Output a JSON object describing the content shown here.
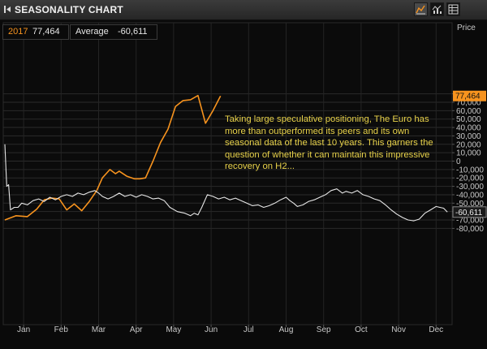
{
  "window": {
    "title": "SEASONALITY CHART"
  },
  "toolbar": {
    "icons": [
      "line-chart-icon",
      "bar-chart-icon",
      "table-icon"
    ]
  },
  "legend": {
    "series_2017": {
      "label": "2017",
      "value": "77,464",
      "color": "#f7931e"
    },
    "average": {
      "label": "Average",
      "value": "-60,611",
      "color": "#e6e6e6"
    }
  },
  "annotation": "Taking large speculative positioning, The Euro has more than outperformed its peers and its own seasonal data of the last 10 years. This garners the question of whether it can maintain this impressive recovery on H2...",
  "chart_data": {
    "type": "line",
    "ylabel": "Price",
    "ylim": [
      -85000,
      87500
    ],
    "yticks": [
      -80000,
      -70000,
      -60000,
      -50000,
      -40000,
      -30000,
      -20000,
      -10000,
      0,
      10000,
      20000,
      30000,
      40000,
      50000,
      60000,
      70000,
      80000
    ],
    "ytick_labels": [
      "-80,000",
      "-70,000",
      "-60,000",
      "-50,000",
      "-40,000",
      "-30,000",
      "-20,000",
      "-10,000",
      "0",
      "10,000",
      "20,000",
      "30,000",
      "40,000",
      "50,000",
      "60,000",
      "70,000",
      "80,000"
    ],
    "x_months": [
      "Jan",
      "Feb",
      "Mar",
      "Apr",
      "May",
      "Jun",
      "Jul",
      "Aug",
      "Sep",
      "Oct",
      "Nov",
      "Dec"
    ],
    "grid": true,
    "last_value_labels": [
      {
        "text": "77,464",
        "value": 77464,
        "series": "2017"
      },
      {
        "text": "-60,611",
        "value": -60611,
        "series": "Average"
      }
    ],
    "series": [
      {
        "name": "2017",
        "color": "#f7931e",
        "points": [
          [
            0,
            -70000
          ],
          [
            0.3,
            -65000
          ],
          [
            0.6,
            -66000
          ],
          [
            0.85,
            -57000
          ],
          [
            1.05,
            -46000
          ],
          [
            1.25,
            -44000
          ],
          [
            1.45,
            -45000
          ],
          [
            1.65,
            -58000
          ],
          [
            1.85,
            -51000
          ],
          [
            2.05,
            -59000
          ],
          [
            2.25,
            -48000
          ],
          [
            2.45,
            -35000
          ],
          [
            2.6,
            -20000
          ],
          [
            2.8,
            -10000
          ],
          [
            2.95,
            -15000
          ],
          [
            3.05,
            -12000
          ],
          [
            3.25,
            -18000
          ],
          [
            3.45,
            -21000
          ],
          [
            3.6,
            -21000
          ],
          [
            3.75,
            -20000
          ],
          [
            3.95,
            0
          ],
          [
            4.15,
            22000
          ],
          [
            4.35,
            38000
          ],
          [
            4.55,
            65000
          ],
          [
            4.75,
            72000
          ],
          [
            4.95,
            73000
          ],
          [
            5.15,
            78000
          ],
          [
            5.35,
            45000
          ],
          [
            5.55,
            60000
          ],
          [
            5.75,
            77464
          ]
        ]
      },
      {
        "name": "Average",
        "color": "#e6e6e6",
        "points": [
          [
            0,
            20000
          ],
          [
            0.05,
            -30000
          ],
          [
            0.1,
            -28000
          ],
          [
            0.15,
            -58000
          ],
          [
            0.25,
            -55000
          ],
          [
            0.35,
            -55000
          ],
          [
            0.45,
            -50000
          ],
          [
            0.6,
            -52000
          ],
          [
            0.75,
            -47000
          ],
          [
            0.9,
            -45000
          ],
          [
            1.05,
            -48000
          ],
          [
            1.2,
            -43000
          ],
          [
            1.35,
            -46000
          ],
          [
            1.5,
            -42000
          ],
          [
            1.65,
            -40000
          ],
          [
            1.8,
            -42000
          ],
          [
            1.95,
            -38000
          ],
          [
            2.1,
            -40000
          ],
          [
            2.25,
            -37000
          ],
          [
            2.4,
            -35000
          ],
          [
            2.5,
            -38000
          ],
          [
            2.6,
            -42000
          ],
          [
            2.75,
            -45000
          ],
          [
            2.9,
            -42000
          ],
          [
            3.05,
            -38000
          ],
          [
            3.2,
            -42000
          ],
          [
            3.35,
            -40000
          ],
          [
            3.5,
            -43000
          ],
          [
            3.65,
            -40000
          ],
          [
            3.8,
            -42000
          ],
          [
            3.95,
            -45000
          ],
          [
            4.1,
            -44000
          ],
          [
            4.25,
            -47000
          ],
          [
            4.4,
            -55000
          ],
          [
            4.6,
            -60000
          ],
          [
            4.8,
            -62000
          ],
          [
            4.95,
            -65000
          ],
          [
            5.05,
            -62000
          ],
          [
            5.15,
            -64000
          ],
          [
            5.25,
            -55000
          ],
          [
            5.4,
            -40000
          ],
          [
            5.55,
            -42000
          ],
          [
            5.7,
            -45000
          ],
          [
            5.85,
            -43000
          ],
          [
            6.0,
            -46000
          ],
          [
            6.15,
            -44000
          ],
          [
            6.3,
            -47000
          ],
          [
            6.45,
            -50000
          ],
          [
            6.6,
            -53000
          ],
          [
            6.75,
            -52000
          ],
          [
            6.9,
            -55000
          ],
          [
            7.05,
            -53000
          ],
          [
            7.2,
            -50000
          ],
          [
            7.35,
            -46000
          ],
          [
            7.5,
            -43000
          ],
          [
            7.6,
            -47000
          ],
          [
            7.7,
            -50000
          ],
          [
            7.8,
            -54000
          ],
          [
            7.95,
            -52000
          ],
          [
            8.1,
            -48000
          ],
          [
            8.25,
            -46000
          ],
          [
            8.4,
            -43000
          ],
          [
            8.55,
            -40000
          ],
          [
            8.7,
            -35000
          ],
          [
            8.85,
            -33000
          ],
          [
            9.0,
            -38000
          ],
          [
            9.1,
            -36000
          ],
          [
            9.25,
            -38000
          ],
          [
            9.4,
            -35000
          ],
          [
            9.55,
            -40000
          ],
          [
            9.7,
            -42000
          ],
          [
            9.85,
            -45000
          ],
          [
            10.0,
            -47000
          ],
          [
            10.15,
            -52000
          ],
          [
            10.3,
            -58000
          ],
          [
            10.45,
            -63000
          ],
          [
            10.6,
            -67000
          ],
          [
            10.75,
            -70000
          ],
          [
            10.9,
            -71000
          ],
          [
            11.05,
            -69000
          ],
          [
            11.2,
            -62000
          ],
          [
            11.35,
            -58000
          ],
          [
            11.5,
            -54000
          ],
          [
            11.6,
            -55000
          ],
          [
            11.7,
            -56000
          ],
          [
            11.8,
            -60611
          ]
        ]
      }
    ]
  }
}
